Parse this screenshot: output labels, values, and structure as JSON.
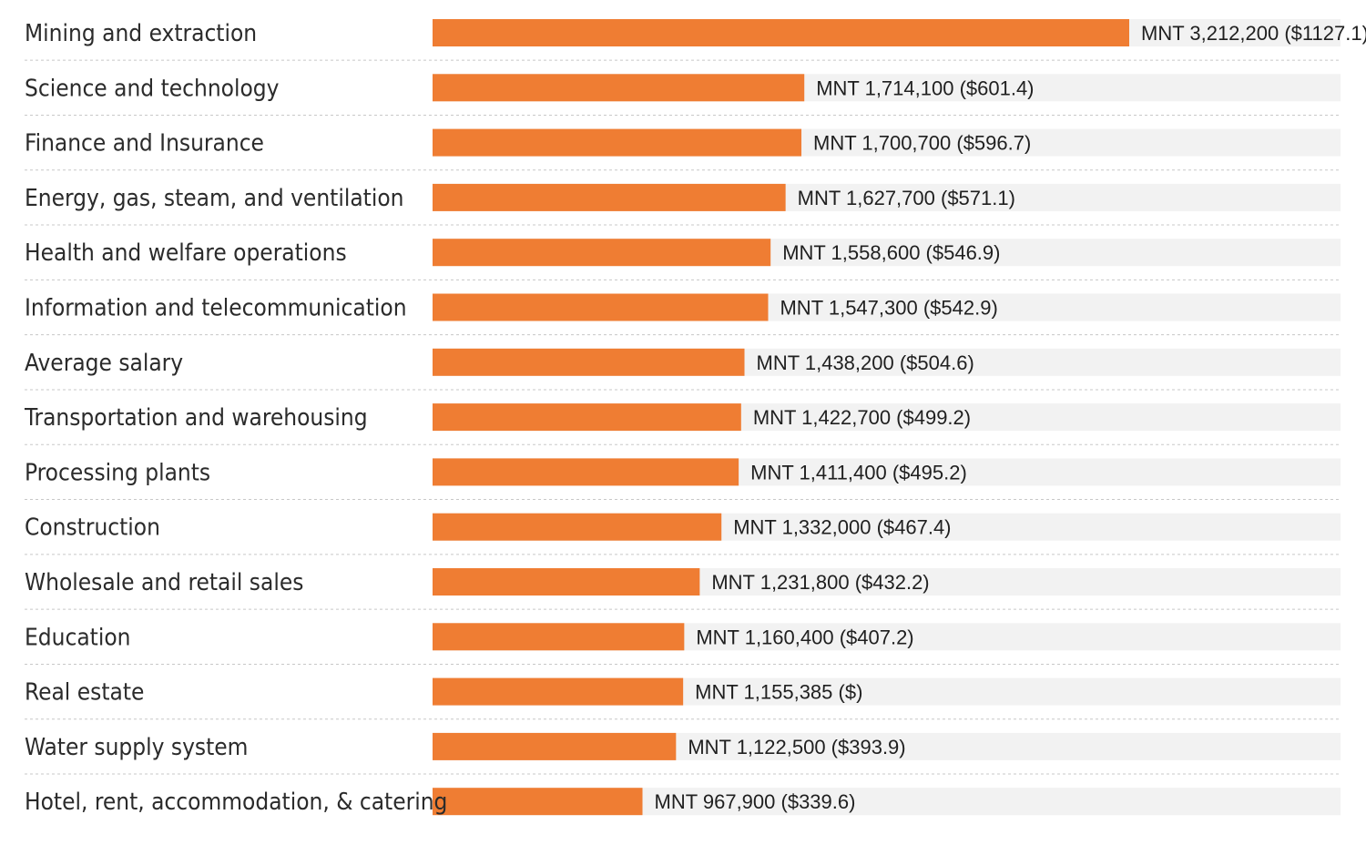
{
  "chart_data": {
    "type": "bar",
    "orientation": "horizontal",
    "categories": [
      "Mining and extraction",
      "Science and technology",
      "Finance and Insurance",
      "Energy, gas, steam, and ventilation",
      "Health and welfare operations",
      "Information and telecommunication",
      "Average salary",
      "Transportation and warehousing",
      "Processing plants",
      "Construction",
      "Wholesale and retail sales",
      "Education",
      "Real estate",
      "Water supply system",
      "Hotel, rent, accommodation, & catering"
    ],
    "values": [
      3212200,
      1714100,
      1700700,
      1627700,
      1558600,
      1547300,
      1438200,
      1422700,
      1411400,
      1332000,
      1231800,
      1160400,
      1155385,
      1122500,
      967900
    ],
    "data_labels": [
      "MNT 3,212,200 ($1127.1)",
      "MNT 1,714,100 ($601.4)",
      "MNT 1,700,700 ($596.7)",
      "MNT 1,627,700 ($571.1)",
      "MNT 1,558,600 ($546.9)",
      "MNT 1,547,300 ($542.9)",
      "MNT 1,438,200 ($504.6)",
      "MNT 1,422,700 ($499.2)",
      "MNT 1,411,400 ($495.2)",
      "MNT 1,332,000 ($467.4)",
      "MNT 1,231,800 ($432.2)",
      "MNT 1,160,400 ($407.2)",
      "MNT 1,155,385 ($)",
      "MNT 1,122,500 ($393.9)",
      "MNT 967,900 ($339.6)"
    ],
    "xlim": [
      0,
      3212200
    ],
    "grid": false,
    "legend": "none",
    "colors": {
      "bar": "#ef7d33",
      "track": "#f2f2f2",
      "divider": "#c8c8c8",
      "text": "#2b2b2b"
    }
  }
}
